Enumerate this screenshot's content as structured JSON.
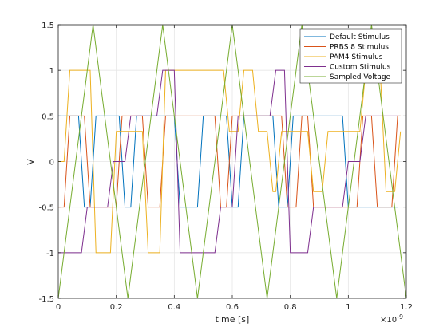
{
  "chart_data": {
    "type": "line",
    "xlabel": "time [s]",
    "ylabel": "V",
    "x_exponent_label": "×10",
    "x_exponent_power": "-9",
    "xlim": [
      0,
      1.2e-09
    ],
    "ylim": [
      -1.5,
      1.5
    ],
    "x_ticks": [
      0,
      2e-10,
      4e-10,
      6e-10,
      8e-10,
      1e-09,
      1.2e-09
    ],
    "x_tick_labels": [
      "0",
      "0.2",
      "0.4",
      "0.6",
      "0.8",
      "1",
      "1.2"
    ],
    "y_ticks": [
      -1.5,
      -1,
      -0.5,
      0,
      0.5,
      1,
      1.5
    ],
    "y_tick_labels": [
      "-1.5",
      "-1",
      "-0.5",
      "0",
      "0.5",
      "1",
      "1.5"
    ],
    "grid": true,
    "legend_position": "top-right",
    "series": [
      {
        "name": "Default Stimulus",
        "color": "#0072bd",
        "x": [
          0,
          7e-11,
          9e-11,
          1.1e-10,
          1.3e-10,
          2.1e-10,
          2.3e-10,
          2.5e-10,
          2.7e-10,
          3.4e-10,
          3.6e-10,
          4e-10,
          4.2e-10,
          4.8e-10,
          5e-10,
          5.2e-10,
          5.4e-10,
          5.8e-10,
          6e-10,
          6.2e-10,
          6.4e-10,
          7.4e-10,
          7.6e-10,
          7.9e-10,
          8.1e-10,
          9.8e-10,
          1e-09,
          1.02e-09,
          1.04e-09,
          1.17e-09
        ],
        "y": [
          0.5,
          0.5,
          -0.5,
          -0.5,
          0.5,
          0.5,
          -0.5,
          -0.5,
          0.5,
          0.5,
          0.5,
          0.5,
          -0.5,
          -0.5,
          0.5,
          0.5,
          0.5,
          0.5,
          -0.5,
          -0.5,
          0.5,
          0.5,
          -0.5,
          -0.5,
          0.5,
          0.5,
          -0.5,
          -0.5,
          -0.5,
          -0.5
        ]
      },
      {
        "name": "PRBS 8 Stimulus",
        "color": "#d95319",
        "x": [
          0,
          2e-11,
          4e-11,
          9e-11,
          1.1e-10,
          2e-10,
          2.2e-10,
          2.9e-10,
          3.1e-10,
          3.5e-10,
          3.7e-10,
          5.4e-10,
          5.6e-10,
          5.8e-10,
          6e-10,
          7.7e-10,
          7.9e-10,
          8.2e-10,
          8.4e-10,
          8.6e-10,
          8.8e-10,
          1.03e-09,
          1.05e-09,
          1.08e-09,
          1.1e-09,
          1.15e-09,
          1.17e-09,
          1.18e-09
        ],
        "y": [
          -0.5,
          -0.5,
          0.5,
          0.5,
          -0.5,
          -0.5,
          0.5,
          0.5,
          -0.5,
          -0.5,
          0.5,
          0.5,
          -0.5,
          -0.5,
          0.5,
          0.5,
          -0.5,
          -0.5,
          0.5,
          0.5,
          -0.5,
          -0.5,
          0.5,
          0.5,
          -0.5,
          -0.5,
          0.5,
          0.5
        ]
      },
      {
        "name": "PAM4 Stimulus",
        "color": "#edb120",
        "x": [
          0,
          2e-11,
          4e-11,
          1.1e-10,
          1.3e-10,
          1.8e-10,
          2e-10,
          2.9e-10,
          3.1e-10,
          3.5e-10,
          3.7e-10,
          5.7e-10,
          5.9e-10,
          6.2e-10,
          6.4e-10,
          6.7e-10,
          6.9e-10,
          7.2e-10,
          7.4e-10,
          7.5e-10,
          7.7e-10,
          8.6e-10,
          8.8e-10,
          9.1e-10,
          9.3e-10,
          1.04e-09,
          1.06e-09,
          1.11e-09,
          1.13e-09,
          1.16e-09,
          1.18e-09
        ],
        "y": [
          0,
          0,
          1,
          1,
          -1,
          -1,
          0.33,
          0.33,
          -1,
          -1,
          1,
          1,
          0.33,
          0.33,
          1,
          1,
          0.33,
          0.33,
          -0.33,
          -0.33,
          0.33,
          0.33,
          -0.33,
          -0.33,
          0.33,
          0.33,
          1,
          1,
          -0.33,
          -0.33,
          0.33
        ]
      },
      {
        "name": "Custom Stimulus",
        "color": "#7e2f8e",
        "x": [
          0,
          8e-11,
          1e-10,
          1.7e-10,
          1.9e-10,
          2.3e-10,
          2.5e-10,
          3.4e-10,
          3.6e-10,
          4e-10,
          4.2e-10,
          5.4e-10,
          5.6e-10,
          6e-10,
          6.2e-10,
          7.3e-10,
          7.5e-10,
          7.8e-10,
          8e-10,
          8.6e-10,
          8.8e-10,
          9.8e-10,
          1e-09,
          1.04e-09,
          1.06e-09,
          1.11e-09,
          1.13e-09,
          1.17e-09
        ],
        "y": [
          -1,
          -1,
          -0.5,
          -0.5,
          0,
          0,
          0.5,
          0.5,
          1,
          1,
          -1,
          -1,
          -0.5,
          -0.5,
          0.5,
          0.5,
          1,
          1,
          -1,
          -1,
          -0.5,
          -0.5,
          0,
          0,
          0.5,
          0.5,
          0.5,
          0.5
        ]
      },
      {
        "name": "Sampled Voltage",
        "color": "#77ac30",
        "x": [
          0,
          1.2e-10,
          2.4e-10,
          3.6e-10,
          4.8e-10,
          6e-10,
          7.2e-10,
          8.4e-10,
          9.6e-10,
          1.08e-09,
          1.2e-09
        ],
        "y": [
          -1.5,
          1.5,
          -1.5,
          1.5,
          -1.5,
          1.5,
          -1.5,
          1.5,
          -1.5,
          1.5,
          -1.5
        ]
      }
    ]
  }
}
